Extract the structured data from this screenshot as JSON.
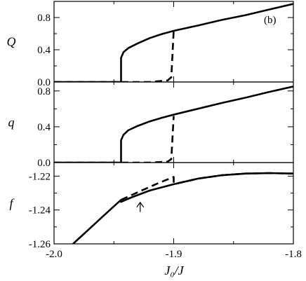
{
  "chart_data": {
    "type": "line",
    "panel_tag": "(b)",
    "xlabel": "J₀/J",
    "xlim": [
      -2.0,
      -1.8
    ],
    "x_ticks": [
      -2.0,
      -1.9,
      -1.8
    ],
    "x_tick_labels": [
      "-2.0",
      "-1.9",
      "-1.8"
    ],
    "arrow_annotation": {
      "x": -1.928,
      "y_tip": -1.2355,
      "y_tail": -1.2412
    },
    "panels": [
      {
        "ylabel": "Q",
        "ylim": [
          0.0,
          1.0
        ],
        "y_ticks": [
          0.0,
          0.4,
          0.8
        ],
        "y_tick_labels": [
          "0.0",
          "0.4",
          "0.8"
        ],
        "series": [
          {
            "style": "solid",
            "x": [
              -2.0,
              -1.944,
              -1.944,
              -1.942,
              -1.938,
              -1.93,
              -1.92,
              -1.91,
              -1.9,
              -1.88,
              -1.86,
              -1.84,
              -1.82,
              -1.8
            ],
            "y": [
              0.0,
              0.0,
              0.3,
              0.37,
              0.42,
              0.48,
              0.545,
              0.595,
              0.635,
              0.7,
              0.77,
              0.83,
              0.9,
              0.97
            ]
          },
          {
            "style": "dashed",
            "x": [
              -2.0,
              -1.92,
              -1.905,
              -1.902,
              -1.9
            ],
            "y": [
              0.0,
              0.0,
              0.02,
              0.06,
              0.64
            ]
          }
        ]
      },
      {
        "ylabel": "q",
        "ylim": [
          0.0,
          0.9
        ],
        "y_ticks": [
          0.0,
          0.4,
          0.8
        ],
        "y_tick_labels": [
          "0.0",
          "0.4",
          "0.8"
        ],
        "series": [
          {
            "style": "solid",
            "x": [
              -2.0,
              -1.944,
              -1.944,
              -1.942,
              -1.938,
              -1.93,
              -1.92,
              -1.91,
              -1.9,
              -1.88,
              -1.86,
              -1.84,
              -1.82,
              -1.8
            ],
            "y": [
              0.0,
              0.0,
              0.25,
              0.31,
              0.36,
              0.41,
              0.46,
              0.5,
              0.535,
              0.6,
              0.665,
              0.725,
              0.79,
              0.85
            ]
          },
          {
            "style": "dashed",
            "x": [
              -2.0,
              -1.92,
              -1.905,
              -1.902,
              -1.9
            ],
            "y": [
              0.0,
              0.0,
              0.01,
              0.04,
              0.52
            ]
          }
        ]
      },
      {
        "ylabel": "f",
        "ylim": [
          -1.26,
          -1.212
        ],
        "y_ticks": [
          -1.26,
          -1.24,
          -1.22
        ],
        "y_tick_labels": [
          "-1.26",
          "-1.24",
          "-1.22"
        ],
        "series": [
          {
            "style": "solid",
            "x": [
              -1.99,
              -1.98,
              -1.97,
              -1.96,
              -1.95,
              -1.944,
              -1.944,
              -1.935,
              -1.92,
              -1.9,
              -1.88,
              -1.86,
              -1.84,
              -1.82,
              -1.8
            ],
            "y": [
              -1.2638,
              -1.2573,
              -1.2508,
              -1.2443,
              -1.2378,
              -1.234,
              -1.2352,
              -1.2325,
              -1.2285,
              -1.2248,
              -1.2215,
              -1.2195,
              -1.2185,
              -1.2182,
              -1.2185
            ]
          },
          {
            "style": "dashed",
            "x": [
              -1.944,
              -1.93,
              -1.915,
              -1.9,
              -1.9,
              -1.88,
              -1.86,
              -1.84,
              -1.82,
              -1.8
            ],
            "y": [
              -1.234,
              -1.2295,
              -1.2248,
              -1.2205,
              -1.2248,
              -1.2215,
              -1.2195,
              -1.2185,
              -1.2182,
              -1.2185
            ]
          }
        ]
      }
    ]
  }
}
